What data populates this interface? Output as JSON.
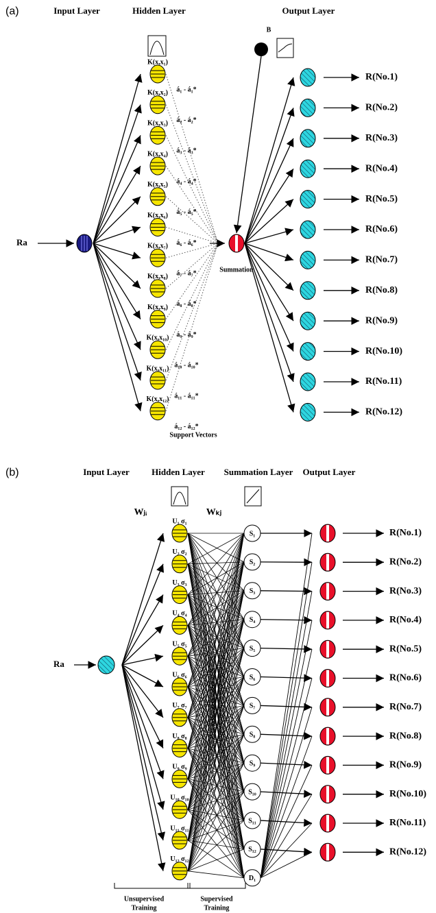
{
  "panel_a": {
    "label": "(a)",
    "input_layer_title": "Input Layer",
    "hidden_layer_title": "Hidden Layer",
    "output_layer_title": "Output Layer",
    "input_label": "Ra",
    "bias_label": "B",
    "summation_label": "Summation",
    "support_vectors_label": "Support Vectors",
    "kernels": [
      "K(x,x₁)",
      "K(x,x₂)",
      "K(x,x₃)",
      "K(x,x₄)",
      "K(x,x₅)",
      "K(x,x₆)",
      "K(x,x₇)",
      "K(x,x₈)",
      "K(x,x₉)",
      "K(x,x₁₀)",
      "K(x,x₁₁)",
      "K(x,x₁₂)"
    ],
    "coefficients": [
      "á₁ - á₁*",
      "á₂ - á₂*",
      "á₃ - á₃*",
      "á₄ - á₄*",
      "á₅ - á₅*",
      "á₆ - á₆*",
      "á₇ - á₇*",
      "á₈ - á₈*",
      "á₉ - á₉*",
      "á₁₀ - á₁₀*",
      "á₁₁ - á₁₁*",
      "á₁₂ - á₁₂*"
    ],
    "outputs": [
      "R(No.1)",
      "R(No.2)",
      "R(No.3)",
      "R(No.4)",
      "R(No.5)",
      "R(No.6)",
      "R(No.7)",
      "R(No.8)",
      "R(No.9)",
      "R(No.10)",
      "R(No.11)",
      "R(No.12)"
    ]
  },
  "panel_b": {
    "label": "(b)",
    "input_layer_title": "Input Layer",
    "hidden_layer_title": "Hidden Layer",
    "summation_layer_title": "Summation Layer",
    "output_layer_title": "Output Layer",
    "input_label": "Ra",
    "weight_ji": "Wⱼᵢ",
    "weight_kj": "Wₖⱼ",
    "hidden_nodes": [
      "U₁ σ₁",
      "U₂ σ₂",
      "U₃ σ₃",
      "U₄ σ₄",
      "U₅ σ₅",
      "U₆ σ₆",
      "U₇ σ₇",
      "U₈ σ₈",
      "U₉ σ₉",
      "U₁₀ σ₁₀",
      "U₁₁ σ₁₁",
      "U₁₂ σ₁₂"
    ],
    "summation_nodes": [
      "S₁",
      "S₂",
      "S₃",
      "S₄",
      "S₅",
      "S₆",
      "S₇",
      "S₈",
      "S₉",
      "S₁₀",
      "S₁₁",
      "S₁₂",
      "D₁"
    ],
    "outputs": [
      "R(No.1)",
      "R(No.2)",
      "R(No.3)",
      "R(No.4)",
      "R(No.5)",
      "R(No.6)",
      "R(No.7)",
      "R(No.8)",
      "R(No.9)",
      "R(No.10)",
      "R(No.11)",
      "R(No.12)"
    ],
    "unsupervised_label": [
      "Unsupervised",
      "Training"
    ],
    "supervised_label": [
      "Supervised",
      "Training"
    ]
  }
}
